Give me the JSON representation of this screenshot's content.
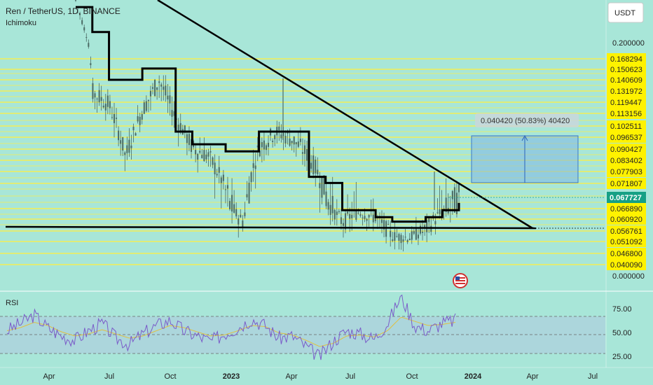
{
  "header": {
    "symbol": "Ren / TetherUS, 1D, BINANCE",
    "indicator": "Ichimoku",
    "currency_button": "USDT"
  },
  "colors": {
    "background": "#a8e6d8",
    "candles": "#4a6a64",
    "level_line": "#f2ee55",
    "trendline": "#000000",
    "ichimoku_line": "#000000",
    "measure_box": "#7fb6e6",
    "price_label": "#16a085",
    "axis_label": "#fff200",
    "rsi_line": "#7b5cc9",
    "rsi_ma": "#e0c040"
  },
  "chart_data": [
    {
      "type": "line",
      "title": "Ren / TetherUS, 1D, BINANCE",
      "x_ticks": [
        "Apr",
        "Jul",
        "Oct",
        "2023",
        "Apr",
        "Jul",
        "Oct",
        "2024",
        "Apr",
        "Jul"
      ],
      "y_axis": {
        "plain_ticks": [
          "0.200000",
          "0.000000"
        ],
        "level_ticks": [
          "0.168294",
          "0.150623",
          "0.140609",
          "0.131972",
          "0.119447",
          "0.113156",
          "0.102511",
          "0.096537",
          "0.090427",
          "0.083402",
          "0.077903",
          "0.071807",
          "0.066890",
          "0.060920",
          "0.056761",
          "0.051092",
          "0.046800",
          "0.040090"
        ],
        "current_price": "0.067727"
      },
      "x": [
        0,
        3,
        6,
        9,
        12,
        15,
        18,
        21,
        24,
        27,
        30,
        33,
        36,
        39,
        42,
        45,
        48,
        51,
        54,
        57,
        60,
        63,
        66,
        69
      ],
      "price": [
        0.44,
        0.13,
        0.12,
        0.085,
        0.115,
        0.14,
        0.11,
        0.09,
        0.085,
        0.07,
        0.06,
        0.09,
        0.1,
        0.095,
        0.085,
        0.07,
        0.06,
        0.065,
        0.062,
        0.054,
        0.053,
        0.057,
        0.065,
        0.068
      ],
      "series": [
        {
          "values": [
            0.44,
            0.13,
            0.12,
            0.085,
            0.115,
            0.14,
            0.11,
            0.09,
            0.085,
            0.07,
            0.06,
            0.09,
            0.1,
            0.095,
            0.085,
            0.07,
            0.06,
            0.065,
            0.062,
            0.054,
            0.053,
            0.057,
            0.065,
            0.068
          ]
        },
        {
          "values": [
            0.4,
            0.26,
            0.14,
            0.14,
            0.155,
            0.155,
            0.1,
            0.092,
            0.092,
            0.088,
            0.088,
            0.1,
            0.1,
            0.1,
            0.075,
            0.072,
            0.066,
            0.066,
            0.062,
            0.06,
            0.06,
            0.062,
            0.066,
            0.068
          ]
        }
      ],
      "measure": {
        "label": "0.040420 (50.83%) 40420"
      }
    },
    {
      "type": "line",
      "title": "RSI",
      "y_ticks": [
        "75.00",
        "50.00",
        "25.00"
      ],
      "ylim": [
        20,
        90
      ],
      "bands": [
        70,
        30
      ],
      "values": [
        55,
        62,
        70,
        58,
        50,
        46,
        55,
        62,
        48,
        42,
        52,
        60,
        65,
        55,
        50,
        45,
        52,
        58,
        66,
        60,
        48,
        50,
        40,
        30,
        45,
        55,
        52,
        47,
        62,
        88,
        60,
        55,
        62,
        65
      ],
      "ma": [
        55,
        58,
        63,
        60,
        54,
        50,
        52,
        56,
        52,
        48,
        50,
        55,
        60,
        58,
        54,
        50,
        51,
        55,
        60,
        59,
        53,
        51,
        46,
        40,
        43,
        50,
        51,
        49,
        55,
        68,
        64,
        60,
        61,
        63
      ]
    }
  ]
}
